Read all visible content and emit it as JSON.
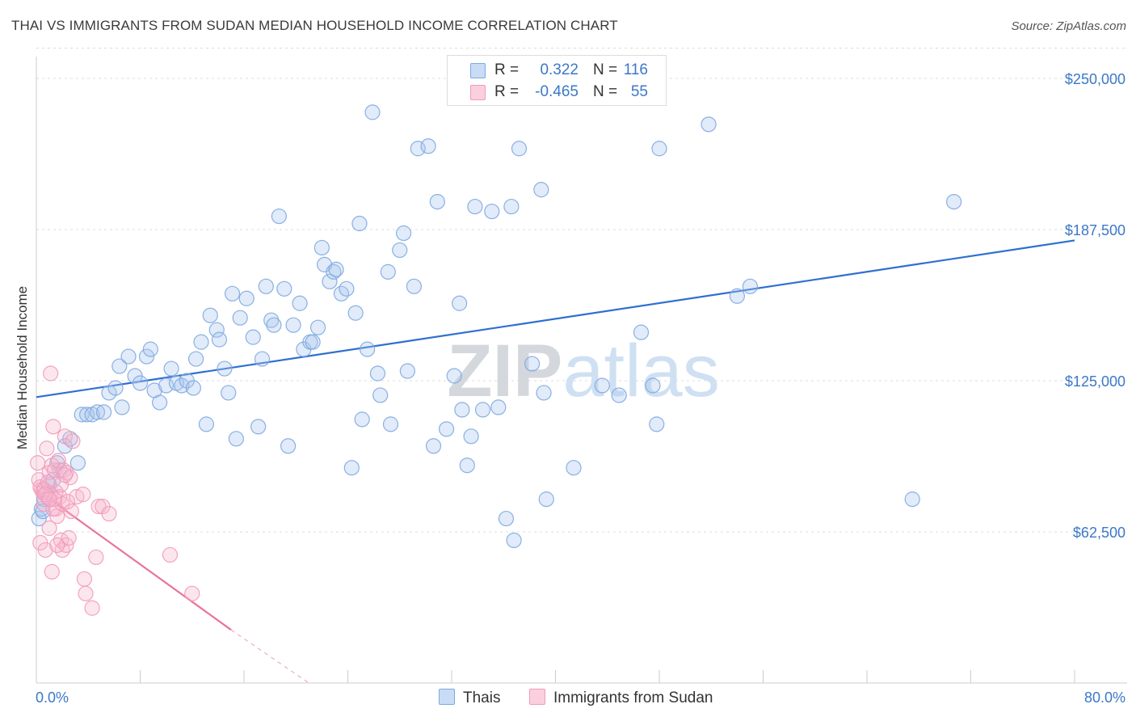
{
  "chart_data": {
    "type": "scatter",
    "title": "THAI VS IMMIGRANTS FROM SUDAN MEDIAN HOUSEHOLD INCOME CORRELATION CHART",
    "source": "Source: ZipAtlas.com",
    "watermark": "ZIPatlas",
    "ylabel": "Median Household Income",
    "x_tick_left": "0.0%",
    "x_tick_right": "80.0%",
    "xlim": [
      0,
      80
    ],
    "ylim": [
      0,
      262500
    ],
    "y_ticks": [
      {
        "value": 62500,
        "label": "$62,500"
      },
      {
        "value": 125000,
        "label": "$125,000"
      },
      {
        "value": 187500,
        "label": "$187,500"
      },
      {
        "value": 250000,
        "label": "$250,000"
      }
    ],
    "legend": {
      "rows": [
        {
          "r_label": "R =",
          "r_value": "0.322",
          "n_label": "N =",
          "n_value": "116"
        },
        {
          "r_label": "R =",
          "r_value": "-0.465",
          "n_label": "N =",
          "n_value": "55"
        }
      ]
    },
    "series": [
      {
        "name": "Thais",
        "color": "#7ea8e0",
        "line_color": "#2f6fd1",
        "trend": {
          "x": [
            0,
            80
          ],
          "y": [
            118200,
            183000
          ]
        },
        "points": [
          [
            0.2,
            68000
          ],
          [
            0.4,
            72000
          ],
          [
            0.6,
            76000
          ],
          [
            0.8,
            79000
          ],
          [
            1.0,
            82000
          ],
          [
            1.3,
            84000
          ],
          [
            1.6,
            91000
          ],
          [
            1.8,
            88000
          ],
          [
            2.2,
            98000
          ],
          [
            2.6,
            101000
          ],
          [
            3.2,
            91000
          ],
          [
            3.5,
            111000
          ],
          [
            3.9,
            111000
          ],
          [
            4.3,
            111000
          ],
          [
            4.7,
            112000
          ],
          [
            5.2,
            112000
          ],
          [
            5.6,
            120000
          ],
          [
            6.1,
            122000
          ],
          [
            6.6,
            114000
          ],
          [
            6.4,
            131000
          ],
          [
            7.1,
            135000
          ],
          [
            7.6,
            127000
          ],
          [
            8.0,
            124000
          ],
          [
            8.5,
            135000
          ],
          [
            8.8,
            138000
          ],
          [
            9.1,
            121000
          ],
          [
            9.5,
            116000
          ],
          [
            10.0,
            123000
          ],
          [
            10.4,
            130000
          ],
          [
            10.8,
            124000
          ],
          [
            11.2,
            123000
          ],
          [
            11.6,
            125000
          ],
          [
            12.1,
            122000
          ],
          [
            12.3,
            134000
          ],
          [
            12.7,
            141000
          ],
          [
            13.1,
            107000
          ],
          [
            13.4,
            152000
          ],
          [
            13.9,
            146000
          ],
          [
            14.1,
            142000
          ],
          [
            14.5,
            130000
          ],
          [
            14.8,
            120000
          ],
          [
            15.1,
            161000
          ],
          [
            15.4,
            101000
          ],
          [
            15.7,
            151000
          ],
          [
            16.2,
            159000
          ],
          [
            16.7,
            143000
          ],
          [
            17.1,
            106000
          ],
          [
            17.4,
            134000
          ],
          [
            17.7,
            164000
          ],
          [
            18.1,
            150000
          ],
          [
            18.3,
            148000
          ],
          [
            18.7,
            193000
          ],
          [
            19.1,
            163000
          ],
          [
            19.4,
            98000
          ],
          [
            19.8,
            148000
          ],
          [
            20.3,
            157000
          ],
          [
            20.6,
            138000
          ],
          [
            21.1,
            141000
          ],
          [
            21.3,
            141000
          ],
          [
            21.7,
            147000
          ],
          [
            22.0,
            180000
          ],
          [
            22.2,
            173000
          ],
          [
            22.6,
            166000
          ],
          [
            22.9,
            170000
          ],
          [
            23.1,
            171000
          ],
          [
            23.5,
            161000
          ],
          [
            23.9,
            163000
          ],
          [
            24.3,
            89000
          ],
          [
            24.6,
            153000
          ],
          [
            24.9,
            190000
          ],
          [
            25.1,
            109000
          ],
          [
            25.5,
            138000
          ],
          [
            25.9,
            236000
          ],
          [
            26.3,
            128000
          ],
          [
            26.5,
            119000
          ],
          [
            27.1,
            170000
          ],
          [
            27.3,
            107000
          ],
          [
            28.0,
            179000
          ],
          [
            28.3,
            186000
          ],
          [
            28.6,
            129000
          ],
          [
            29.1,
            164000
          ],
          [
            29.4,
            221000
          ],
          [
            30.2,
            222000
          ],
          [
            30.6,
            98000
          ],
          [
            30.9,
            199000
          ],
          [
            31.6,
            105000
          ],
          [
            32.2,
            127000
          ],
          [
            32.6,
            157000
          ],
          [
            32.8,
            113000
          ],
          [
            33.2,
            90000
          ],
          [
            33.5,
            102000
          ],
          [
            33.8,
            197000
          ],
          [
            34.4,
            113000
          ],
          [
            35.1,
            195000
          ],
          [
            35.6,
            114000
          ],
          [
            36.2,
            68000
          ],
          [
            36.6,
            197000
          ],
          [
            36.8,
            59000
          ],
          [
            37.2,
            221000
          ],
          [
            38.2,
            132000
          ],
          [
            39.1,
            120000
          ],
          [
            38.9,
            204000
          ],
          [
            39.3,
            76000
          ],
          [
            41.4,
            89000
          ],
          [
            43.6,
            123000
          ],
          [
            44.9,
            119000
          ],
          [
            46.6,
            145000
          ],
          [
            47.5,
            123000
          ],
          [
            47.8,
            107000
          ],
          [
            48.0,
            221000
          ],
          [
            51.8,
            231000
          ],
          [
            54.0,
            160000
          ],
          [
            55.0,
            164000
          ],
          [
            67.5,
            76000
          ],
          [
            70.7,
            199000
          ],
          [
            0.5,
            71000
          ]
        ]
      },
      {
        "name": "Immigrants from Sudan",
        "color": "#f29ab8",
        "line_color": "#e8739c",
        "trend": {
          "x": [
            0,
            15
          ],
          "y": [
            80000,
            22000
          ]
        },
        "trend_dashed": {
          "x": [
            15,
            21
          ],
          "y": [
            22000,
            0
          ]
        },
        "points": [
          [
            0.1,
            91000
          ],
          [
            0.2,
            84000
          ],
          [
            0.3,
            58000
          ],
          [
            0.4,
            80000
          ],
          [
            0.5,
            79000
          ],
          [
            0.6,
            74000
          ],
          [
            0.7,
            55000
          ],
          [
            0.8,
            97000
          ],
          [
            0.9,
            77000
          ],
          [
            1.0,
            87000
          ],
          [
            1.0,
            64000
          ],
          [
            1.1,
            78000
          ],
          [
            1.2,
            46000
          ],
          [
            1.2,
            90000
          ],
          [
            1.3,
            106000
          ],
          [
            1.4,
            88000
          ],
          [
            1.5,
            79000
          ],
          [
            1.5,
            72000
          ],
          [
            1.6,
            69000
          ],
          [
            1.7,
            92000
          ],
          [
            1.8,
            77000
          ],
          [
            1.9,
            59000
          ],
          [
            2.0,
            74000
          ],
          [
            2.0,
            55000
          ],
          [
            2.1,
            88000
          ],
          [
            2.2,
            102000
          ],
          [
            2.3,
            57000
          ],
          [
            2.3,
            87000
          ],
          [
            2.4,
            75000
          ],
          [
            2.5,
            60000
          ],
          [
            2.6,
            85000
          ],
          [
            2.7,
            71000
          ],
          [
            2.8,
            100000
          ],
          [
            3.1,
            77000
          ],
          [
            3.6,
            78000
          ],
          [
            3.7,
            43000
          ],
          [
            3.8,
            37000
          ],
          [
            4.3,
            31000
          ],
          [
            4.6,
            52000
          ],
          [
            4.8,
            73000
          ],
          [
            5.1,
            73000
          ],
          [
            5.6,
            70000
          ],
          [
            10.3,
            53000
          ],
          [
            12.0,
            37000
          ],
          [
            1.1,
            128000
          ],
          [
            0.3,
            81000
          ],
          [
            0.6,
            80000
          ],
          [
            0.9,
            83000
          ],
          [
            1.3,
            72000
          ],
          [
            1.6,
            57000
          ],
          [
            1.9,
            82000
          ],
          [
            2.2,
            86000
          ],
          [
            1.4,
            76000
          ],
          [
            0.7,
            78000
          ],
          [
            1.0,
            76000
          ]
        ]
      }
    ]
  },
  "bottom_legend": {
    "thais_label": "Thais",
    "sudan_label": "Immigrants from Sudan"
  }
}
